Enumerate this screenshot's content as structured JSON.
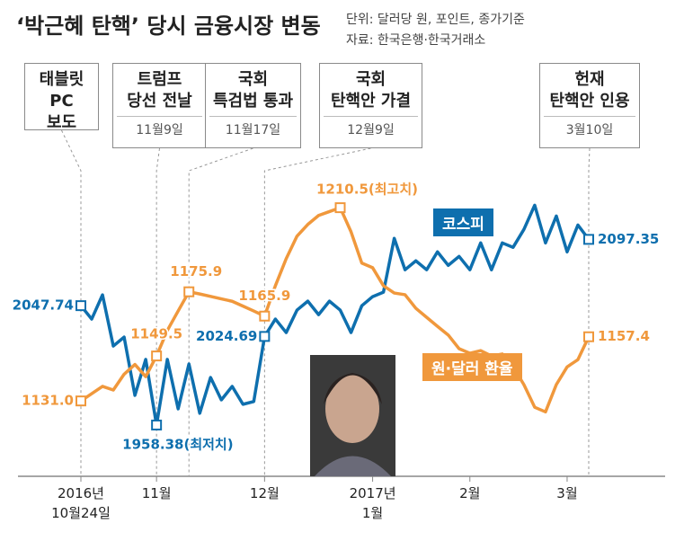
{
  "chart_data": {
    "type": "line",
    "title": "‘박근혜 탄핵’ 당시 금융시장 변동",
    "subtitle": [
      "단위: 달러당 원, 포인트, 종가기준",
      "자료: 한국은행·한국거래소"
    ],
    "categories": [
      "2016년\n10월24일",
      null,
      null,
      null,
      null,
      null,
      null,
      "11월",
      null,
      null,
      null,
      null,
      null,
      null,
      null,
      null,
      null,
      "12월",
      null,
      null,
      null,
      null,
      null,
      null,
      null,
      null,
      null,
      "2017년\n1월",
      null,
      null,
      null,
      null,
      null,
      null,
      null,
      null,
      "2월",
      null,
      null,
      null,
      null,
      null,
      null,
      null,
      null,
      "3월",
      null,
      null
    ],
    "ylim": [
      1100,
      1222
    ],
    "y2lim": [
      1920,
      2142
    ],
    "series": [
      {
        "name": "코스피",
        "color": "#0e6fae",
        "axis": "y2",
        "values": [
          2047.74,
          2037.7,
          2055.8,
          2017.5,
          2024.2,
          1980.6,
          2007.5,
          1958.38,
          2007.5,
          1970.5,
          2004.1,
          1967.2,
          1994.0,
          1977.2,
          1987.3,
          1973.9,
          1976.0,
          2024.69,
          2037.7,
          2027.6,
          2044.4,
          2051.1,
          2041.0,
          2051.1,
          2044.4,
          2027.6,
          2047.7,
          2054.5,
          2057.8,
          2098.1,
          2074.6,
          2081.3,
          2074.6,
          2088.0,
          2077.9,
          2084.6,
          2074.6,
          2094.7,
          2074.6,
          2094.7,
          2091.4,
          2104.8,
          2122.9,
          2094.7,
          2114.8,
          2088.0,
          2108.1,
          2097.35
        ],
        "value_labels": [
          "2047.74",
          null,
          null,
          null,
          null,
          null,
          null,
          "1958.38(최저치)",
          null,
          null,
          null,
          null,
          null,
          null,
          null,
          null,
          null,
          "2024.69",
          null,
          null,
          null,
          null,
          null,
          null,
          null,
          null,
          null,
          null,
          null,
          null,
          null,
          null,
          null,
          null,
          null,
          null,
          null,
          null,
          null,
          null,
          null,
          null,
          null,
          null,
          null,
          null,
          null,
          "2097.35"
        ]
      },
      {
        "name": "원·달러 환율",
        "color": "#f0983c",
        "values": [
          1131.0,
          1134,
          1137,
          1135.5,
          1142,
          1146,
          1141,
          1149.5,
          1160,
          1168,
          1175.9,
          1175,
          1174,
          1173,
          1172,
          1170,
          1168,
          1165.9,
          1178.4,
          1189.5,
          1198.8,
          1203.6,
          1207.3,
          1208.9,
          1210.5,
          1200.6,
          1187.7,
          1185.8,
          1178.4,
          1175.4,
          1174.7,
          1169.1,
          1165.4,
          1161.7,
          1158.1,
          1152.5,
          1150.6,
          1151.7,
          1149.5,
          1150.3,
          1145.1,
          1137.7,
          1128.4,
          1126.5,
          1137.7,
          1145,
          1148,
          1157.4
        ],
        "value_labels": [
          "1131.0",
          null,
          null,
          null,
          null,
          null,
          null,
          "1149.5",
          null,
          null,
          "1175.9",
          null,
          null,
          null,
          null,
          null,
          null,
          "1165.9",
          null,
          null,
          null,
          null,
          null,
          null,
          "1210.5(최고치)",
          null,
          null,
          null,
          null,
          null,
          null,
          null,
          null,
          null,
          null,
          null,
          null,
          null,
          null,
          null,
          null,
          null,
          null,
          null,
          null,
          null,
          null,
          "1157.4"
        ]
      }
    ],
    "annotations": [
      {
        "label": "태블릿PC\n보도"
      },
      {
        "label": "트럼프\n당선 전날",
        "date": "11월9일"
      },
      {
        "label": "국회\n특검법 통과",
        "date": "11월17일"
      },
      {
        "label": "국회\n탄핵안 가결",
        "date": "12월9일"
      },
      {
        "label": "헌재\n탄핵안 인용",
        "date": "3월10일"
      }
    ]
  }
}
